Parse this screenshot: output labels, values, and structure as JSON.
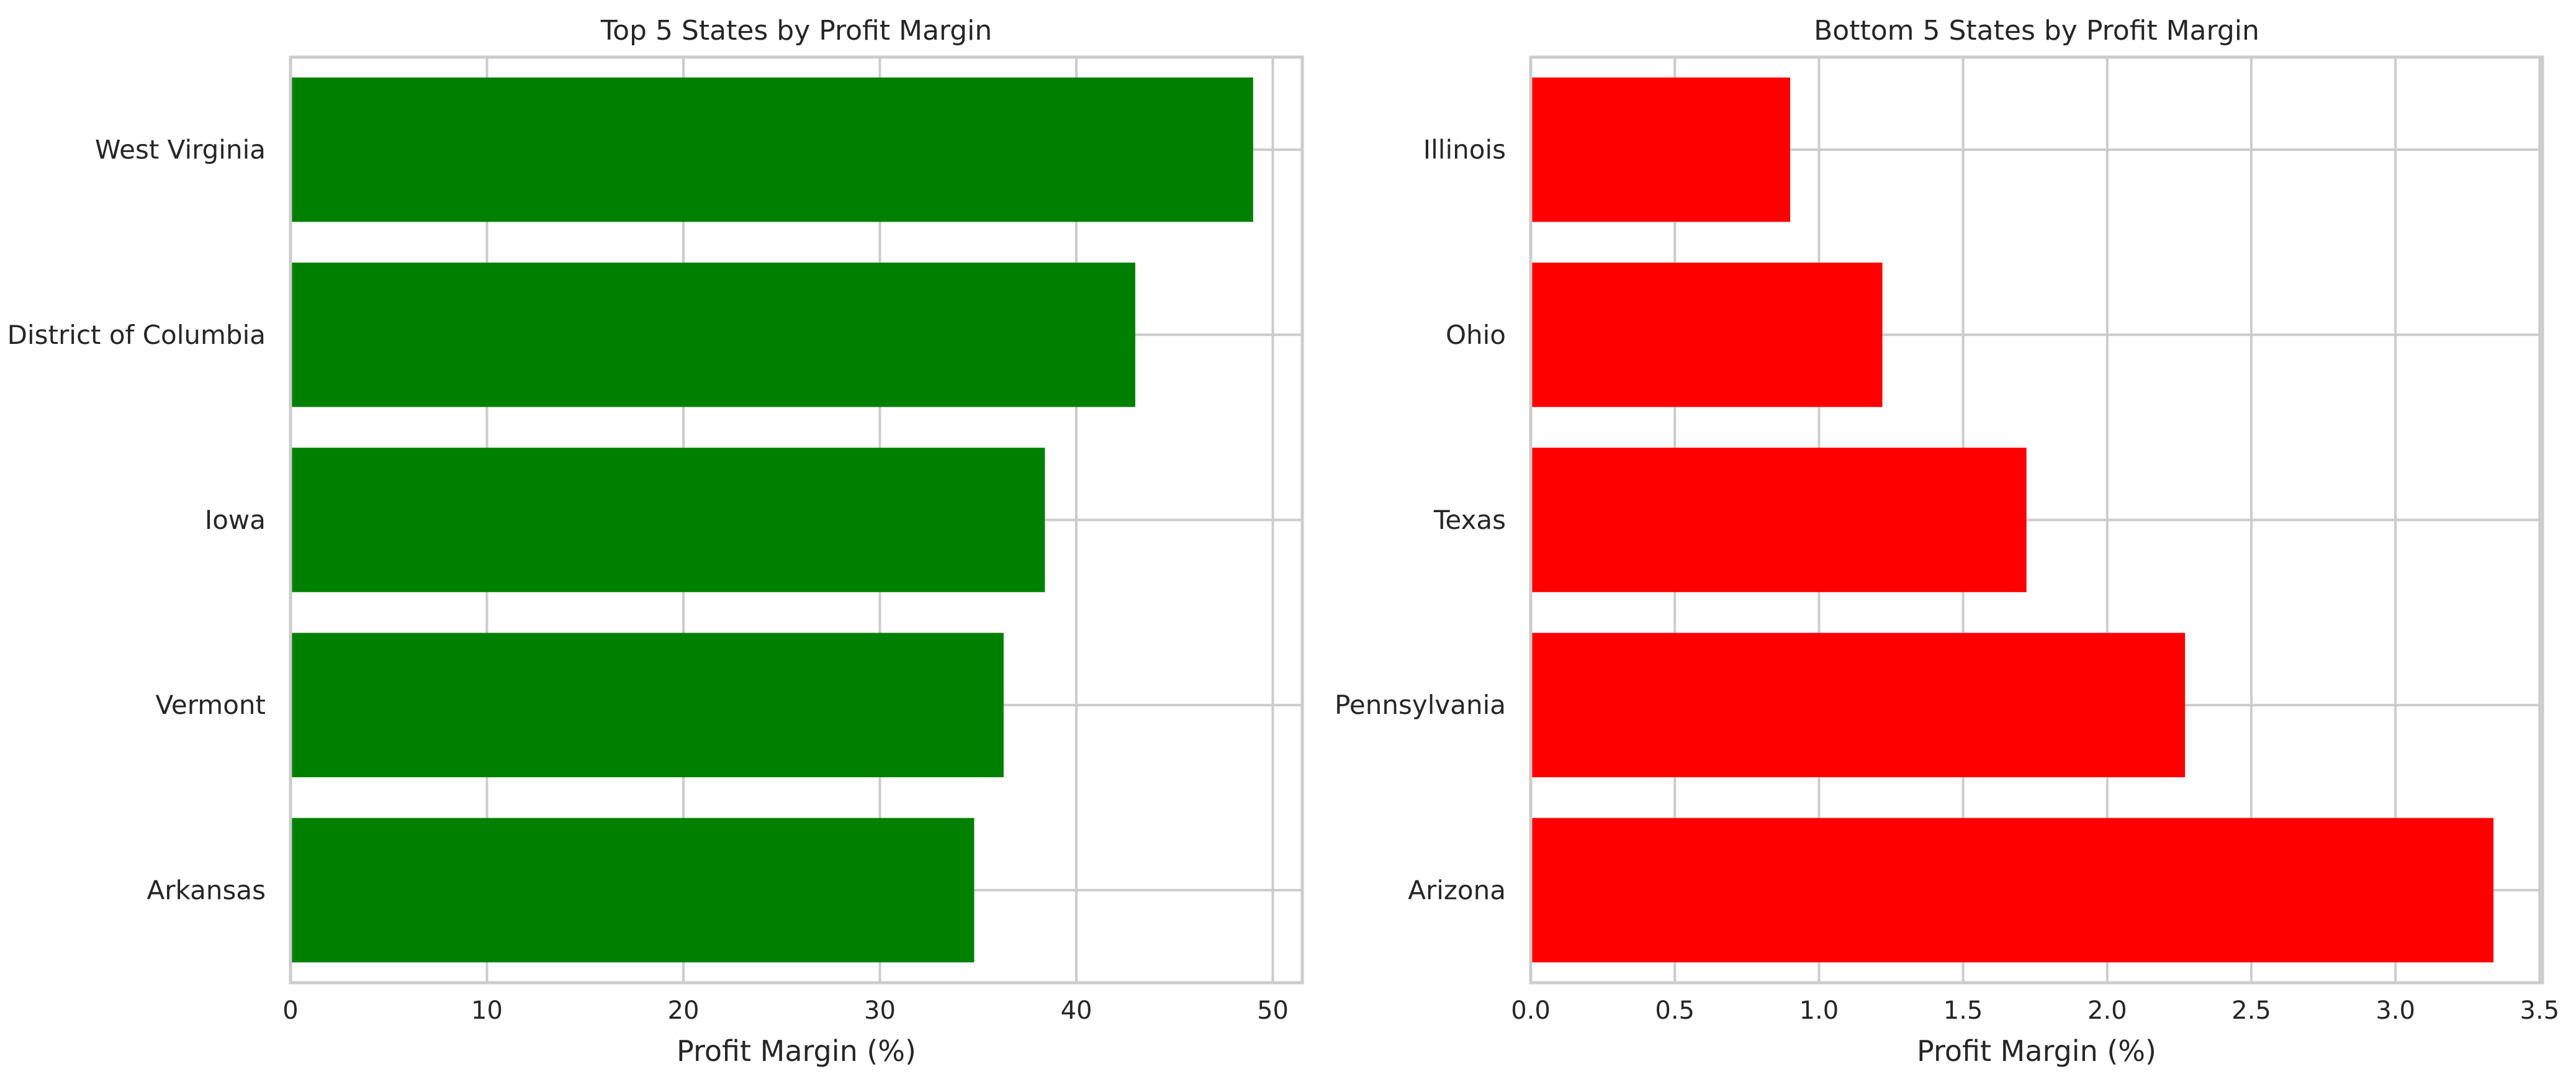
{
  "chart_data": [
    {
      "type": "bar",
      "orientation": "horizontal",
      "title": "Top 5 States by Profit Margin",
      "xlabel": "Profit Margin (%)",
      "ylabel": "",
      "categories": [
        "West Virginia",
        "District of Columbia",
        "Iowa",
        "Vermont",
        "Arkansas"
      ],
      "values": [
        49.0,
        43.0,
        38.4,
        36.3,
        34.8
      ],
      "xlim": [
        0,
        51.5
      ],
      "xticks": [
        0,
        10,
        20,
        30,
        40,
        50
      ],
      "xtick_labels": [
        "0",
        "10",
        "20",
        "30",
        "40",
        "50"
      ],
      "color": "#008000",
      "grid": true
    },
    {
      "type": "bar",
      "orientation": "horizontal",
      "title": "Bottom 5 States by Profit Margin",
      "xlabel": "Profit Margin (%)",
      "ylabel": "",
      "categories": [
        "Illinois",
        "Ohio",
        "Texas",
        "Pennsylvania",
        "Arizona"
      ],
      "values": [
        0.9,
        1.22,
        1.72,
        2.27,
        3.34
      ],
      "xlim": [
        0,
        3.51
      ],
      "xticks": [
        0,
        0.5,
        1.0,
        1.5,
        2.0,
        2.5,
        3.0,
        3.5
      ],
      "xtick_labels": [
        "0.0",
        "0.5",
        "1.0",
        "1.5",
        "2.0",
        "2.5",
        "3.0",
        "3.5"
      ],
      "color": "#ff0000",
      "grid": true
    }
  ]
}
